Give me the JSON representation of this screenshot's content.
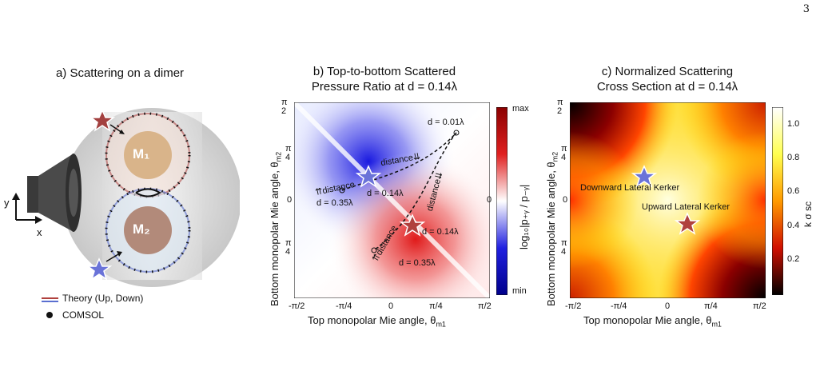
{
  "page_number": "3",
  "panel_a": {
    "title": "a)  Scattering on a dimer",
    "m1_label": "M₁",
    "m2_label": "M₂",
    "axis_y": "y",
    "axis_x": "x",
    "legend_theory": "Theory (Up, Down)",
    "legend_comsol": "COMSOL",
    "colors": {
      "up": "#b0413e",
      "down": "#5a6fd0",
      "m1_fill": "#d9b48a",
      "m2_fill": "#b28a7a"
    }
  },
  "panel_b": {
    "title_line1": "b)  Top-to-bottom Scattered",
    "title_line2": "Pressure Ratio at d = 0.14λ",
    "xlabel": "Top monopolar Mie angle, θ",
    "xlabel_sub": "m1",
    "ylabel": "Bottom monopolar Mie angle, θ",
    "ylabel_sub": "m2",
    "xticks": [
      "-π/2",
      "-π/4",
      "0",
      "π/4",
      "π/2"
    ],
    "yticks_top": "π",
    "yticks_top_den": "2",
    "yticks_mid_num": "π",
    "yticks_mid_den": "4",
    "ytick_zero": "0",
    "ytick_neg_num": "π",
    "ytick_neg_den": "4",
    "colorbar_max": "max",
    "colorbar_min": "min",
    "colorbar_zero": "0",
    "colorbar_label": "log₁₀|p₊ᵧ / p₋ᵧ|",
    "annotations": {
      "d001": "d = 0.01λ",
      "d014a": "d = 0.14λ",
      "d035a": "d = 0.35λ",
      "d014b": "d = 0.14λ",
      "d035b": "d = 0.35λ",
      "dist1": "⇈distance",
      "dist2": "distance⇊",
      "dist3": "⇈distance",
      "dist4": "distance⇊"
    }
  },
  "panel_c": {
    "title_line1": "c)  Normalized Scattering",
    "title_line2": "Cross Section at d = 0.14λ",
    "xlabel": "Top monopolar Mie angle, θ",
    "xlabel_sub": "m1",
    "ylabel": "Bottom monopolar Mie angle, θ",
    "ylabel_sub": "m2",
    "xticks": [
      "-π/2",
      "-π/4",
      "0",
      "π/4",
      "π/2"
    ],
    "colorbar_ticks": [
      "1.0",
      "0.8",
      "0.6",
      "0.4",
      "0.2"
    ],
    "colorbar_label": "k σ sc",
    "annotation_down": "Downward Lateral Kerker",
    "annotation_up": "Upward Lateral Kerker"
  }
}
